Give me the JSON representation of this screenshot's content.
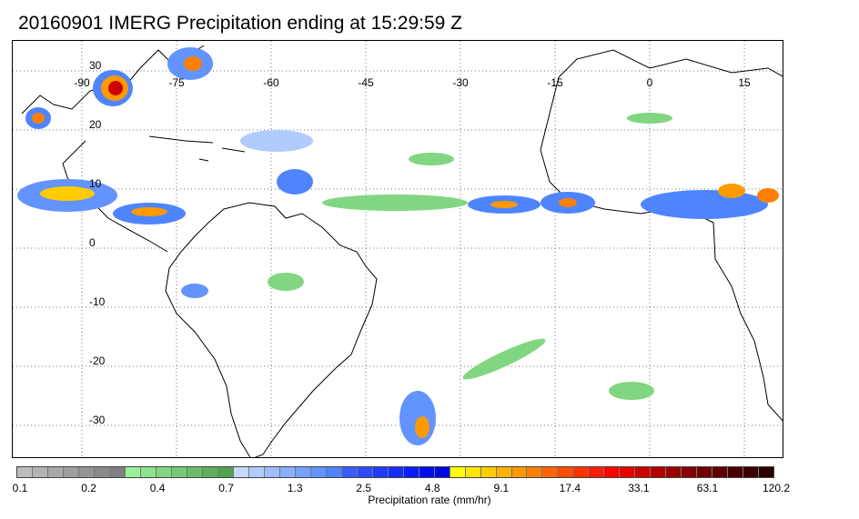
{
  "title": "20160901 IMERG Precipitation ending at 15:29:59 Z",
  "map": {
    "lon_labels": [
      "-90",
      "-75",
      "-60",
      "-45",
      "-30",
      "-15",
      "0",
      "15"
    ],
    "lat_labels": [
      "30",
      "20",
      "10",
      "0",
      "-10",
      "-20",
      "-30"
    ],
    "grid": "dotted"
  },
  "colorbar": {
    "label": "Precipitation rate (mm/hr)",
    "tick_labels": [
      "0.1",
      "0.2",
      "0.4",
      "0.7",
      "1.3",
      "2.5",
      "4.8",
      "9.1",
      "17.4",
      "33.1",
      "63.1",
      "120.2"
    ],
    "colors": [
      "#bdbdbd",
      "#b3b3b3",
      "#a8a8a8",
      "#9e9e9e",
      "#949494",
      "#8a8a8a",
      "#808080",
      "#9bf09b",
      "#8ee38e",
      "#82d682",
      "#76c976",
      "#6abc6a",
      "#5eaf5e",
      "#52a252",
      "#c6d8ff",
      "#b2cbff",
      "#9ebdff",
      "#8aafff",
      "#76a1ff",
      "#6293ff",
      "#4e85ff",
      "#3a5cff",
      "#2e4cff",
      "#223cff",
      "#162cff",
      "#0a1cff",
      "#0010f0",
      "#0008e0",
      "#ffff00",
      "#ffe600",
      "#ffcc00",
      "#ffb300",
      "#ff9900",
      "#ff8000",
      "#ff6600",
      "#ff4d00",
      "#ff3300",
      "#ff1a00",
      "#ff0000",
      "#e60000",
      "#cc0000",
      "#b30000",
      "#990000",
      "#850000",
      "#700000",
      "#5c0000",
      "#4a0000",
      "#3a0000",
      "#2a0000"
    ]
  }
}
